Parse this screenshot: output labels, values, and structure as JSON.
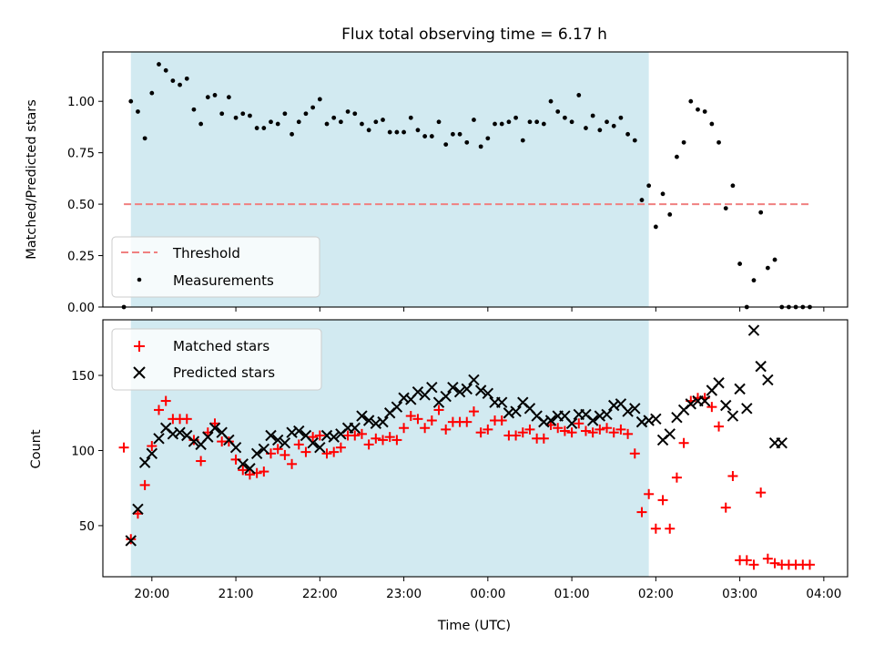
{
  "chart_data": {
    "type": "scatter",
    "title": "Flux total observing time = 6.17 h",
    "xlabel": "Time (UTC)",
    "x_ticks": [
      "20:00",
      "21:00",
      "22:00",
      "23:00",
      "00:00",
      "01:00",
      "02:00",
      "03:00",
      "04:00"
    ],
    "x_range": [
      "19:25",
      "04:17"
    ],
    "shaded_interval": [
      "19:45",
      "01:55"
    ],
    "top_panel": {
      "ylabel": "Matched/Predicted stars",
      "ylim": [
        0,
        1.24
      ],
      "y_ticks": [
        "0.00",
        "0.25",
        "0.50",
        "0.75",
        "1.00"
      ],
      "legend_position": "lower-left",
      "threshold": {
        "name": "Threshold",
        "value": 0.5,
        "x_start": "19:40",
        "x_end": "03:50",
        "color": "#f08080"
      },
      "measurements": {
        "name": "Measurements",
        "color": "#000000",
        "x": [
          "19:40",
          "19:45",
          "19:50",
          "19:55",
          "20:00",
          "20:05",
          "20:10",
          "20:15",
          "20:20",
          "20:25",
          "20:30",
          "20:35",
          "20:40",
          "20:45",
          "20:50",
          "20:55",
          "21:00",
          "21:05",
          "21:10",
          "21:15",
          "21:20",
          "21:25",
          "21:30",
          "21:35",
          "21:40",
          "21:45",
          "21:50",
          "21:55",
          "22:00",
          "22:05",
          "22:10",
          "22:15",
          "22:20",
          "22:25",
          "22:30",
          "22:35",
          "22:40",
          "22:45",
          "22:50",
          "22:55",
          "23:00",
          "23:05",
          "23:10",
          "23:15",
          "23:20",
          "23:25",
          "23:30",
          "23:35",
          "23:40",
          "23:45",
          "23:50",
          "23:55",
          "00:00",
          "00:05",
          "00:10",
          "00:15",
          "00:20",
          "00:25",
          "00:30",
          "00:35",
          "00:40",
          "00:45",
          "00:50",
          "00:55",
          "01:00",
          "01:05",
          "01:10",
          "01:15",
          "01:20",
          "01:25",
          "01:30",
          "01:35",
          "01:40",
          "01:45",
          "01:50",
          "01:55",
          "02:00",
          "02:05",
          "02:10",
          "02:15",
          "02:20",
          "02:25",
          "02:30",
          "02:35",
          "02:40",
          "02:45",
          "02:50",
          "02:55",
          "03:00",
          "03:05",
          "03:10",
          "03:15",
          "03:20",
          "03:25",
          "03:30",
          "03:35",
          "03:40",
          "03:45",
          "03:50"
        ],
        "y": [
          0.0,
          1.0,
          0.95,
          0.82,
          1.04,
          1.18,
          1.15,
          1.1,
          1.08,
          1.11,
          0.96,
          0.89,
          1.02,
          1.03,
          0.94,
          1.02,
          0.92,
          0.94,
          0.93,
          0.87,
          0.87,
          0.9,
          0.89,
          0.94,
          0.84,
          0.9,
          0.94,
          0.97,
          1.01,
          0.89,
          0.92,
          0.9,
          0.95,
          0.94,
          0.89,
          0.86,
          0.9,
          0.91,
          0.85,
          0.85,
          0.85,
          0.92,
          0.86,
          0.83,
          0.83,
          0.9,
          0.79,
          0.84,
          0.84,
          0.8,
          0.91,
          0.78,
          0.82,
          0.89,
          0.89,
          0.9,
          0.92,
          0.81,
          0.9,
          0.9,
          0.89,
          1.0,
          0.95,
          0.92,
          0.9,
          1.03,
          0.87,
          0.93,
          0.86,
          0.9,
          0.88,
          0.92,
          0.84,
          0.81,
          0.52,
          0.59,
          0.39,
          0.55,
          0.45,
          0.73,
          0.8,
          1.0,
          0.96,
          0.95,
          0.89,
          0.8,
          0.48,
          0.59,
          0.21,
          0.0,
          0.13,
          0.46,
          0.19,
          0.23,
          0.0,
          0.0,
          0.0,
          0.0,
          0.0
        ]
      }
    },
    "bottom_panel": {
      "ylabel": "Count",
      "ylim": [
        16,
        187
      ],
      "y_ticks": [
        "50",
        "100",
        "150"
      ],
      "legend_position": "upper-left",
      "series": [
        {
          "name": "Matched stars",
          "marker": "plus",
          "color": "#ff0000",
          "x": [
            "19:40",
            "19:45",
            "19:50",
            "19:55",
            "20:00",
            "20:05",
            "20:10",
            "20:15",
            "20:20",
            "20:25",
            "20:30",
            "20:35",
            "20:40",
            "20:45",
            "20:50",
            "20:55",
            "21:00",
            "21:05",
            "21:10",
            "21:15",
            "21:20",
            "21:25",
            "21:30",
            "21:35",
            "21:40",
            "21:45",
            "21:50",
            "21:55",
            "22:00",
            "22:05",
            "22:10",
            "22:15",
            "22:20",
            "22:25",
            "22:30",
            "22:35",
            "22:40",
            "22:45",
            "22:50",
            "22:55",
            "23:00",
            "23:05",
            "23:10",
            "23:15",
            "23:20",
            "23:25",
            "23:30",
            "23:35",
            "23:40",
            "23:45",
            "23:50",
            "23:55",
            "00:00",
            "00:05",
            "00:10",
            "00:15",
            "00:20",
            "00:25",
            "00:30",
            "00:35",
            "00:40",
            "00:45",
            "00:50",
            "00:55",
            "01:00",
            "01:05",
            "01:10",
            "01:15",
            "01:20",
            "01:25",
            "01:30",
            "01:35",
            "01:40",
            "01:45",
            "01:50",
            "01:55",
            "02:00",
            "02:05",
            "02:10",
            "02:15",
            "02:20",
            "02:25",
            "02:30",
            "02:35",
            "02:40",
            "02:45",
            "02:50",
            "02:55",
            "03:00",
            "03:05",
            "03:10",
            "03:15",
            "03:20",
            "03:25",
            "03:30",
            "03:35",
            "03:40",
            "03:45",
            "03:50"
          ],
          "y": [
            102,
            41,
            58,
            77,
            103,
            127,
            133,
            121,
            121,
            121,
            107,
            93,
            112,
            118,
            106,
            106,
            94,
            87,
            84,
            85,
            86,
            98,
            101,
            97,
            91,
            104,
            99,
            109,
            110,
            98,
            99,
            102,
            110,
            110,
            111,
            104,
            108,
            107,
            109,
            107,
            115,
            123,
            121,
            115,
            120,
            127,
            114,
            119,
            119,
            119,
            126,
            112,
            114,
            120,
            120,
            110,
            110,
            112,
            114,
            108,
            108,
            117,
            115,
            113,
            112,
            118,
            113,
            112,
            114,
            115,
            112,
            114,
            111,
            98,
            59,
            71,
            48,
            67,
            48,
            82,
            105,
            133,
            135,
            135,
            129,
            116,
            62,
            83,
            27,
            27,
            24,
            72,
            28,
            25,
            24,
            24,
            24,
            24,
            24
          ]
        },
        {
          "name": "Predicted stars",
          "marker": "x",
          "color": "#000000",
          "x": [
            "19:45",
            "19:50",
            "19:55",
            "20:00",
            "20:05",
            "20:10",
            "20:15",
            "20:20",
            "20:25",
            "20:30",
            "20:35",
            "20:40",
            "20:45",
            "20:50",
            "20:55",
            "21:00",
            "21:05",
            "21:10",
            "21:15",
            "21:20",
            "21:25",
            "21:30",
            "21:35",
            "21:40",
            "21:45",
            "21:50",
            "21:55",
            "22:00",
            "22:05",
            "22:10",
            "22:15",
            "22:20",
            "22:25",
            "22:30",
            "22:35",
            "22:40",
            "22:45",
            "22:50",
            "22:55",
            "23:00",
            "23:05",
            "23:10",
            "23:15",
            "23:20",
            "23:25",
            "23:30",
            "23:35",
            "23:40",
            "23:45",
            "23:50",
            "23:55",
            "00:00",
            "00:05",
            "00:10",
            "00:15",
            "00:20",
            "00:25",
            "00:30",
            "00:35",
            "00:40",
            "00:45",
            "00:50",
            "00:55",
            "01:00",
            "01:05",
            "01:10",
            "01:15",
            "01:20",
            "01:25",
            "01:30",
            "01:35",
            "01:40",
            "01:45",
            "01:50",
            "01:55",
            "02:00",
            "02:05",
            "02:10",
            "02:15",
            "02:20",
            "02:25",
            "02:30",
            "02:35",
            "02:40",
            "02:45",
            "02:50",
            "02:55",
            "03:00",
            "03:05",
            "03:10",
            "03:15",
            "03:20",
            "03:25",
            "03:30"
          ],
          "y": [
            40,
            61,
            92,
            98,
            108,
            115,
            111,
            112,
            110,
            106,
            104,
            109,
            115,
            112,
            107,
            102,
            91,
            88,
            98,
            101,
            110,
            107,
            105,
            112,
            113,
            110,
            105,
            102,
            110,
            109,
            111,
            115,
            115,
            123,
            120,
            118,
            119,
            125,
            129,
            135,
            134,
            139,
            137,
            142,
            132,
            136,
            142,
            139,
            141,
            147,
            140,
            138,
            132,
            132,
            125,
            126,
            132,
            128,
            123,
            119,
            120,
            123,
            123,
            118,
            124,
            124,
            120,
            123,
            124,
            130,
            131,
            126,
            128,
            119,
            120,
            121,
            107,
            111,
            122,
            127,
            131,
            133,
            133,
            140,
            145,
            130,
            123,
            141,
            128,
            180,
            156,
            147,
            105,
            105
          ]
        }
      ]
    }
  }
}
